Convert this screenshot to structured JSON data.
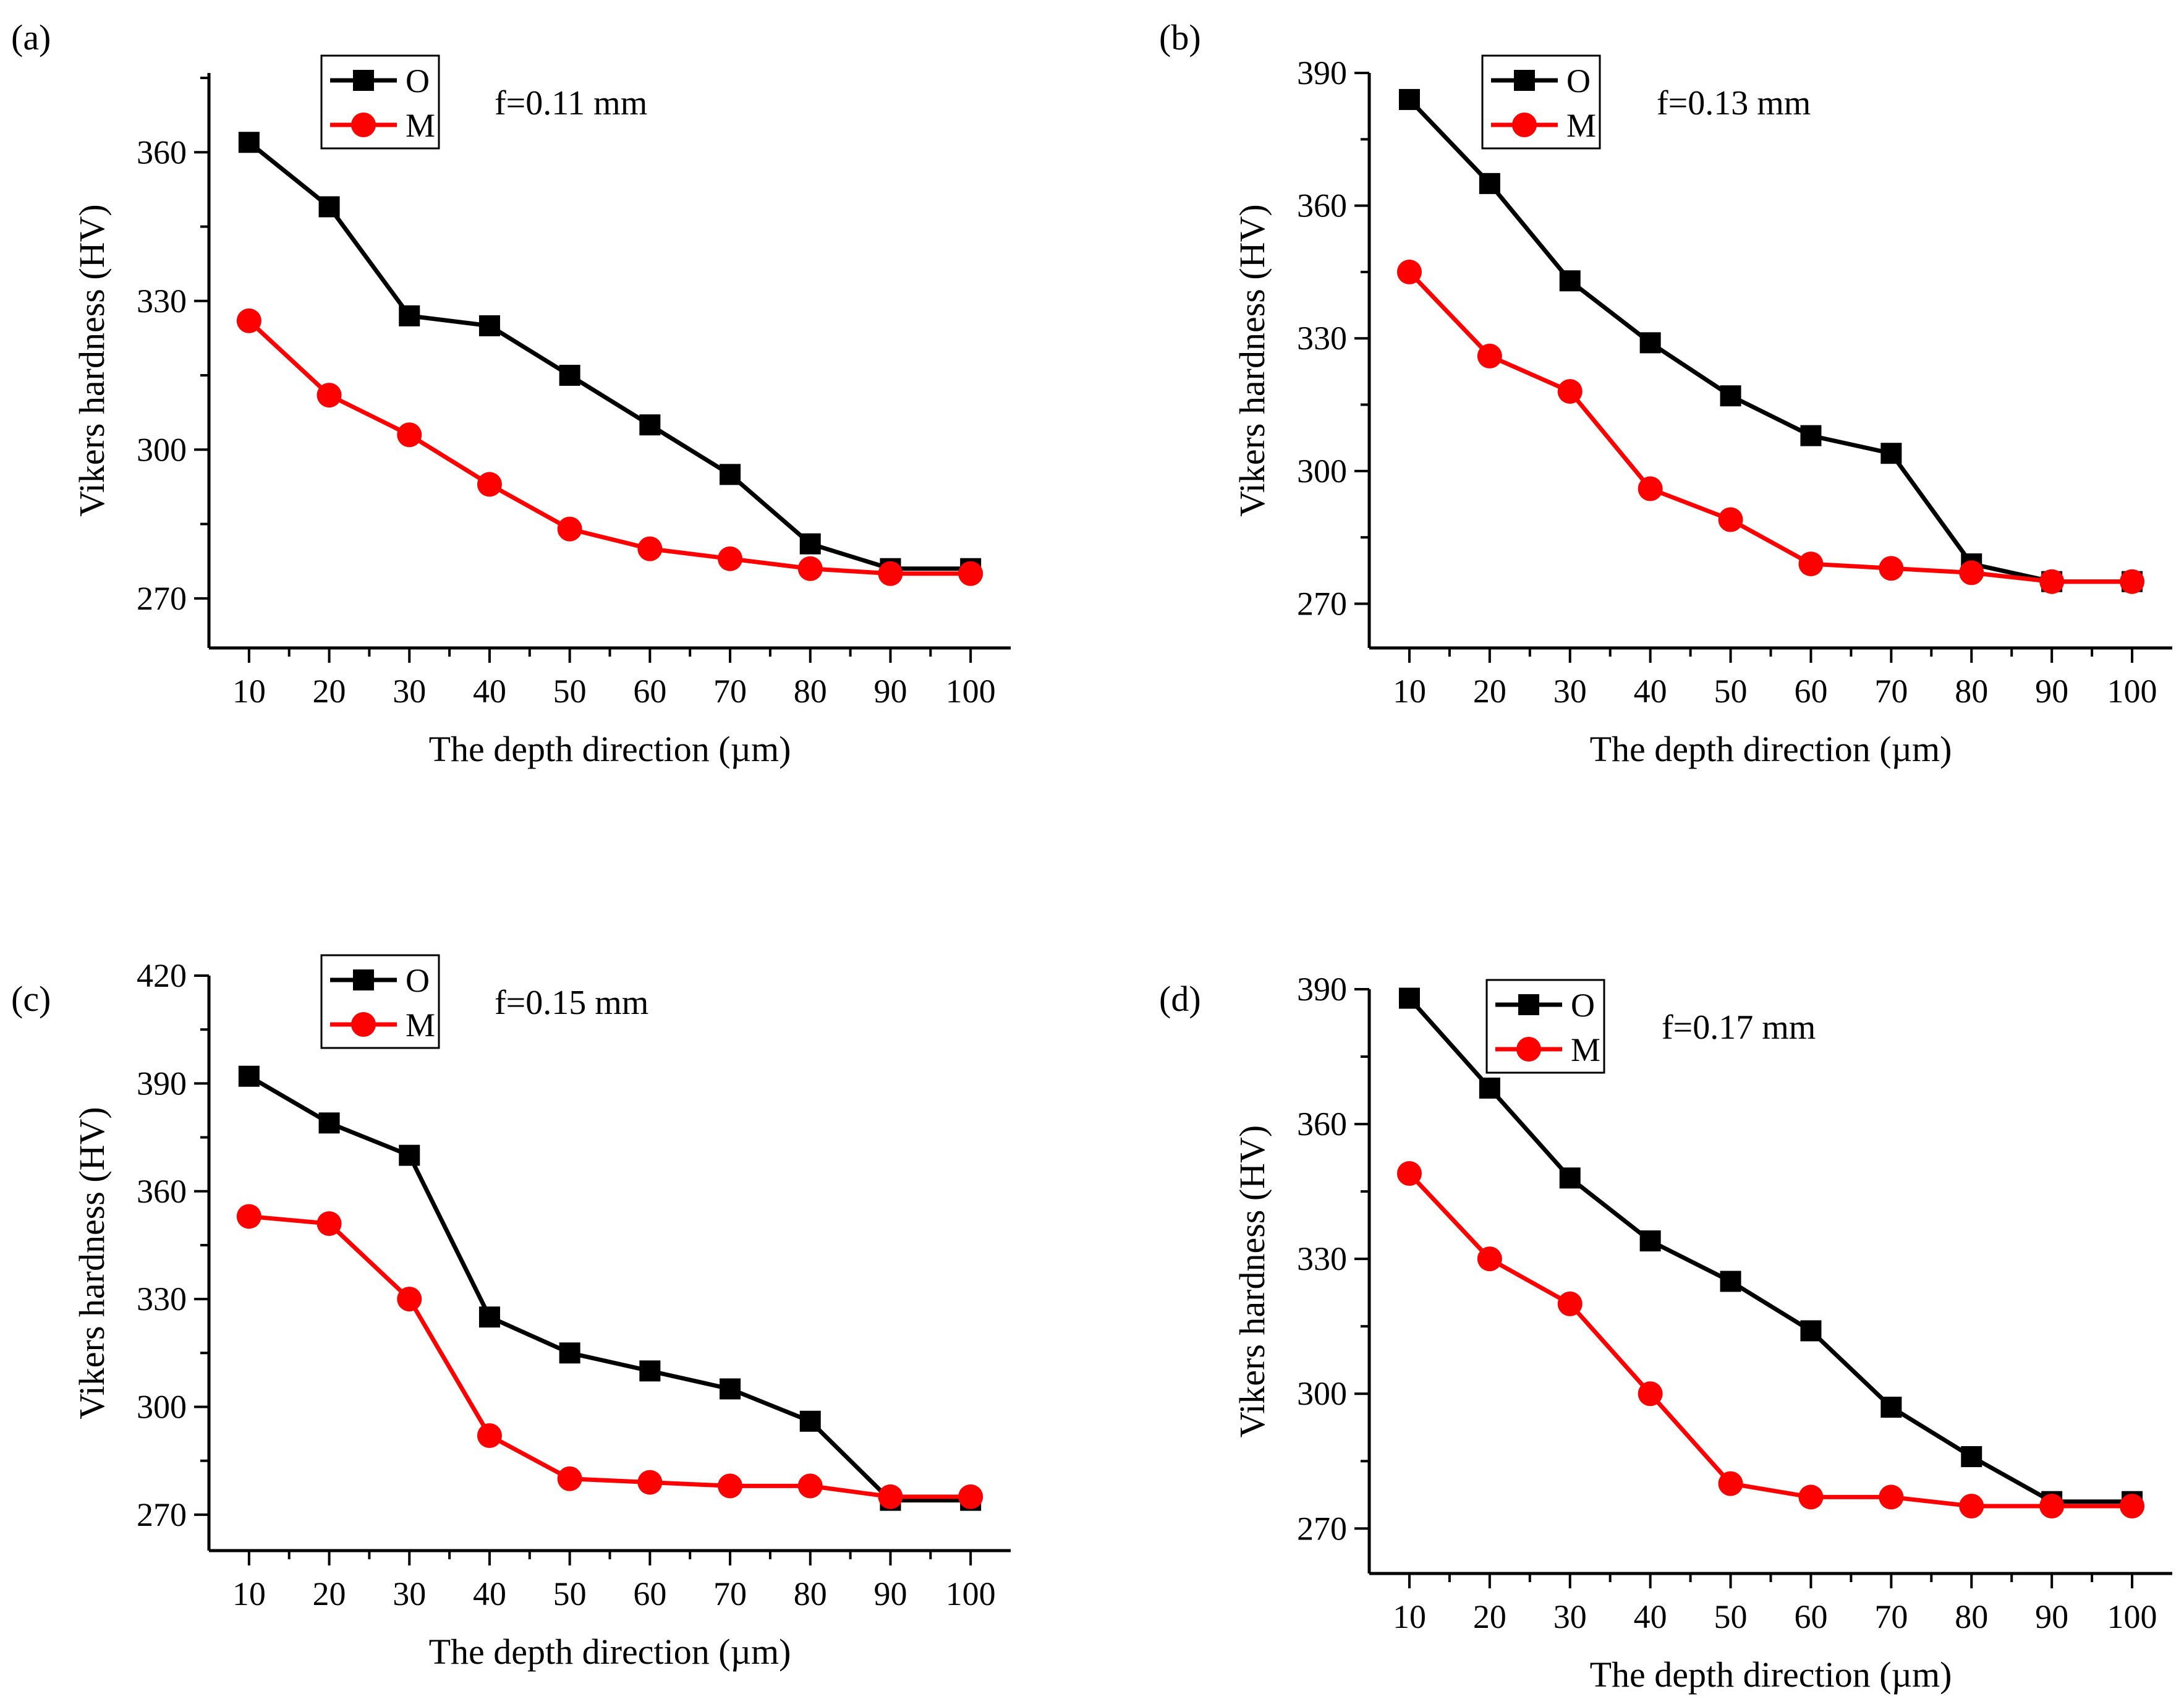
{
  "colors": {
    "O": "#000000",
    "M": "#ff0000"
  },
  "chart_data": [
    {
      "panel_label": "(a)",
      "type": "line",
      "annotation": "f=0.11 mm",
      "xlabel": "The depth direction (µm)",
      "ylabel": "Vikers hardness (HV)",
      "x": [
        10,
        20,
        30,
        40,
        50,
        60,
        70,
        80,
        90,
        100
      ],
      "x_ticks": [
        "10",
        "20",
        "30",
        "40",
        "50",
        "60",
        "70",
        "80",
        "90",
        "100"
      ],
      "xlim": [
        5,
        105
      ],
      "ylim": [
        260,
        376
      ],
      "y_ticks": [
        270,
        300,
        330,
        360
      ],
      "y_tick_labels": [
        "270",
        "300",
        "330",
        "360"
      ],
      "legend": "top-left",
      "series": [
        {
          "name": "O",
          "marker": "square",
          "values": [
            362,
            349,
            327,
            325,
            315,
            305,
            295,
            281,
            276,
            276
          ]
        },
        {
          "name": "M",
          "marker": "circle",
          "values": [
            326,
            311,
            303,
            293,
            284,
            280,
            278,
            276,
            275,
            275
          ]
        }
      ]
    },
    {
      "panel_label": "(b)",
      "type": "line",
      "annotation": "f=0.13 mm",
      "xlabel": "The depth direction (µm)",
      "ylabel": "Vikers hardness (HV)",
      "x": [
        10,
        20,
        30,
        40,
        50,
        60,
        70,
        80,
        90,
        100
      ],
      "x_ticks": [
        "10",
        "20",
        "30",
        "40",
        "50",
        "60",
        "70",
        "80",
        "90",
        "100"
      ],
      "xlim": [
        5,
        105
      ],
      "ylim": [
        260,
        390
      ],
      "y_ticks": [
        270,
        300,
        330,
        360,
        390
      ],
      "y_tick_labels": [
        "270",
        "300",
        "330",
        "360",
        "390"
      ],
      "legend": "top-left",
      "series": [
        {
          "name": "O",
          "marker": "square",
          "values": [
            384,
            365,
            343,
            329,
            317,
            308,
            304,
            279,
            275,
            275
          ]
        },
        {
          "name": "M",
          "marker": "circle",
          "values": [
            345,
            326,
            318,
            296,
            289,
            279,
            278,
            277,
            275,
            275
          ]
        }
      ]
    },
    {
      "panel_label": "(c)",
      "type": "line",
      "annotation": "f=0.15 mm",
      "xlabel": "The depth direction (µm)",
      "ylabel": "Vikers hardness (HV)",
      "x": [
        10,
        20,
        30,
        40,
        50,
        60,
        70,
        80,
        90,
        100
      ],
      "x_ticks": [
        "10",
        "20",
        "30",
        "40",
        "50",
        "60",
        "70",
        "80",
        "90",
        "100"
      ],
      "xlim": [
        5,
        105
      ],
      "ylim": [
        260,
        420
      ],
      "y_ticks": [
        270,
        300,
        330,
        360,
        390,
        420
      ],
      "y_tick_labels": [
        "270",
        "300",
        "330",
        "360",
        "390",
        "420"
      ],
      "legend": "top-left",
      "series": [
        {
          "name": "O",
          "marker": "square",
          "values": [
            392,
            379,
            370,
            325,
            315,
            310,
            305,
            296,
            274,
            274
          ]
        },
        {
          "name": "M",
          "marker": "circle",
          "values": [
            353,
            351,
            330,
            292,
            280,
            279,
            278,
            278,
            275,
            275
          ]
        }
      ]
    },
    {
      "panel_label": "(d)",
      "type": "line",
      "annotation": "f=0.17 mm",
      "xlabel": "The depth direction (µm)",
      "ylabel": "Vikers hardness (HV)",
      "x": [
        10,
        20,
        30,
        40,
        50,
        60,
        70,
        80,
        90,
        100
      ],
      "x_ticks": [
        "10",
        "20",
        "30",
        "40",
        "50",
        "60",
        "70",
        "80",
        "90",
        "100"
      ],
      "xlim": [
        5,
        105
      ],
      "ylim": [
        260,
        390
      ],
      "y_ticks": [
        270,
        300,
        330,
        360,
        390
      ],
      "y_tick_labels": [
        "270",
        "300",
        "330",
        "360",
        "390"
      ],
      "legend": "top-left",
      "series": [
        {
          "name": "O",
          "marker": "square",
          "values": [
            388,
            368,
            348,
            334,
            325,
            314,
            297,
            286,
            276,
            276
          ]
        },
        {
          "name": "M",
          "marker": "circle",
          "values": [
            349,
            330,
            320,
            300,
            280,
            277,
            277,
            275,
            275,
            275
          ]
        }
      ]
    }
  ]
}
